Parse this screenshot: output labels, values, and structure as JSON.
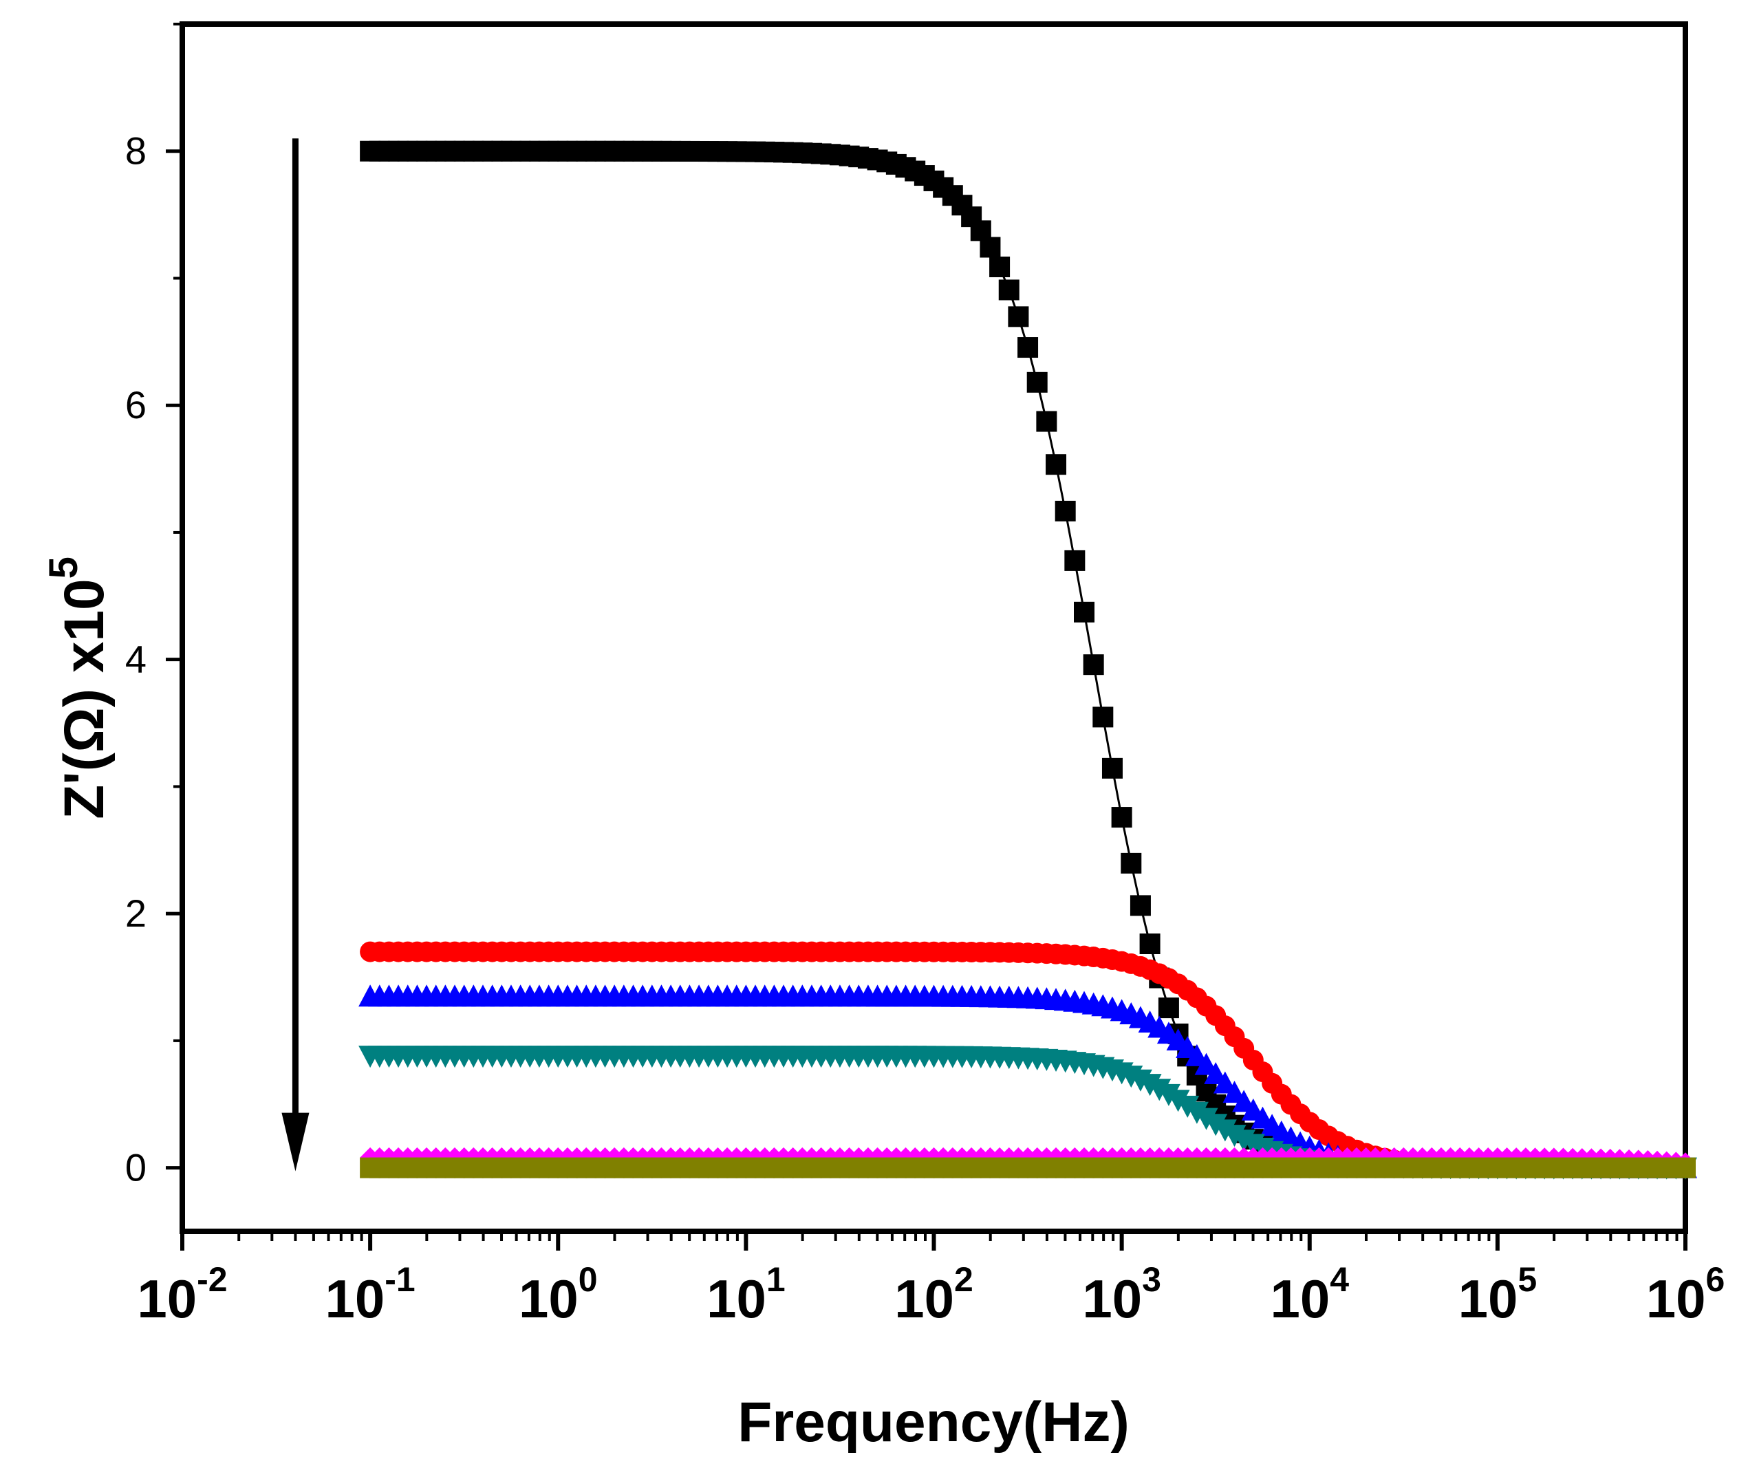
{
  "chart_data": {
    "type": "scatter",
    "title": "",
    "xlabel": "Frequency(Hz)",
    "ylabel": "Z'(Ω) x10",
    "ylabel_exponent": "5",
    "xscale": "log",
    "xlim": [
      0.01,
      1000000
    ],
    "ylim": [
      -0.5,
      9
    ],
    "grid": false,
    "legend": "none",
    "x_ticks": [
      {
        "base": "10",
        "exp": "-2",
        "value": 0.01
      },
      {
        "base": "10",
        "exp": "-1",
        "value": 0.1
      },
      {
        "base": "10",
        "exp": "0",
        "value": 1
      },
      {
        "base": "10",
        "exp": "1",
        "value": 10
      },
      {
        "base": "10",
        "exp": "2",
        "value": 100
      },
      {
        "base": "10",
        "exp": "3",
        "value": 1000
      },
      {
        "base": "10",
        "exp": "4",
        "value": 10000
      },
      {
        "base": "10",
        "exp": "5",
        "value": 100000
      },
      {
        "base": "10",
        "exp": "6",
        "value": 1000000
      }
    ],
    "y_ticks": [
      "0",
      "2",
      "4",
      "6",
      "8"
    ],
    "annotation": {
      "type": "arrow",
      "direction": "down",
      "x": 0.04,
      "y_start": 8.1,
      "y_end": 0
    }
  },
  "series_def": [
    {
      "name": "series-1",
      "color": "#000000",
      "marker": "square",
      "z0": 8.0,
      "fc": 700,
      "n": 0.9,
      "line": true
    },
    {
      "name": "series-2",
      "color": "#ff0000",
      "marker": "circle",
      "z0": 1.7,
      "fc": 5000,
      "n": 0.95,
      "line": false
    },
    {
      "name": "series-3",
      "color": "#0000ff",
      "marker": "triangle-up",
      "z0": 1.35,
      "fc": 3500,
      "n": 0.95,
      "line": false
    },
    {
      "name": "series-4",
      "color": "#008080",
      "marker": "triangle-down",
      "z0": 0.88,
      "fc": 2500,
      "n": 0.95,
      "line": false
    },
    {
      "name": "series-5",
      "color": "#ff00ff",
      "marker": "diamond",
      "z0": 0.08,
      "fc": 1000000,
      "n": 1.0,
      "line": false
    },
    {
      "name": "series-6",
      "color": "#808000",
      "marker": "square",
      "z0": 0.0,
      "fc": 1000000,
      "n": 1.0,
      "line": false
    }
  ]
}
